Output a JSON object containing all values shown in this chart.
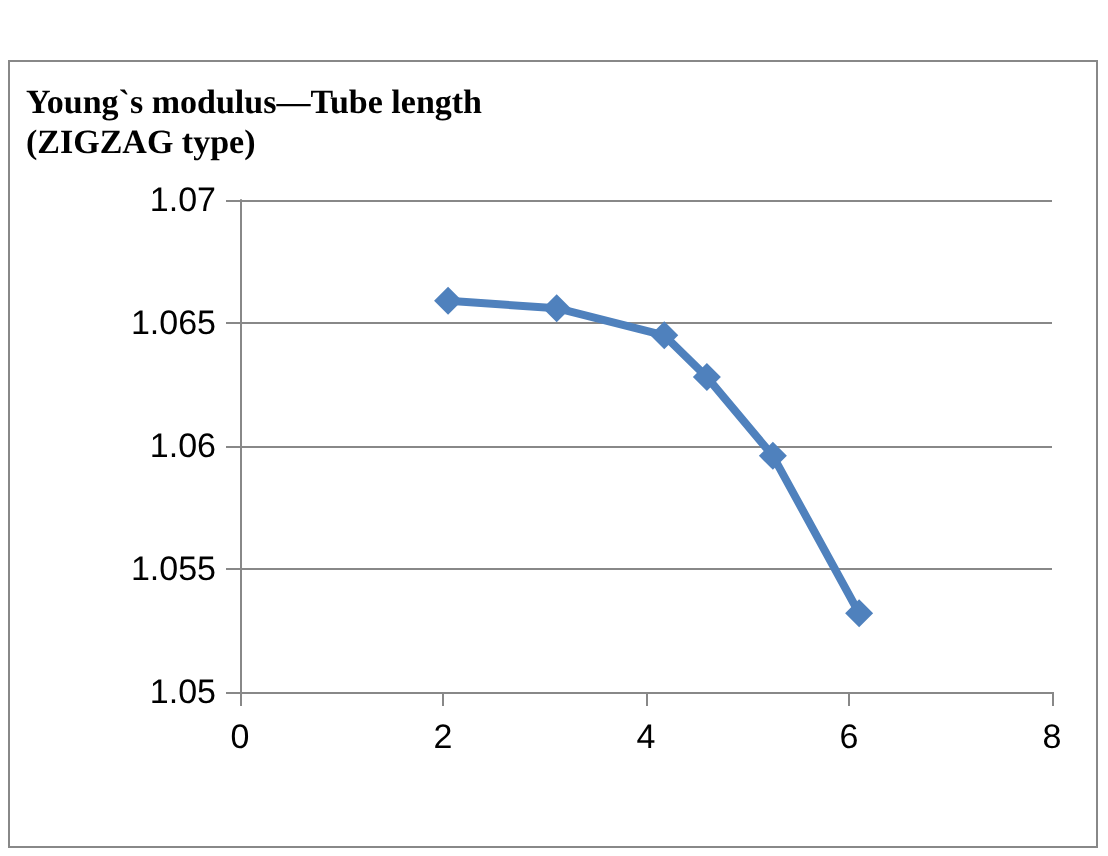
{
  "chart_data": {
    "type": "line",
    "title": "Young`s modulus—Tube length\n(ZIGZAG type)",
    "x": [
      2.05,
      3.12,
      4.18,
      4.6,
      5.25,
      6.1
    ],
    "series": [
      {
        "color": "#4f81bd",
        "values": [
          1.0659,
          1.0656,
          1.0645,
          1.0628,
          1.0596,
          1.0532
        ]
      }
    ],
    "xlim": [
      0,
      8
    ],
    "xticks": [
      0,
      2,
      4,
      6,
      8
    ],
    "ylim": [
      1.05,
      1.07
    ],
    "yticks": [
      1.05,
      1.055,
      1.06,
      1.065,
      1.07
    ],
    "grid": "y",
    "marker": "diamond",
    "line_style": "solid"
  }
}
